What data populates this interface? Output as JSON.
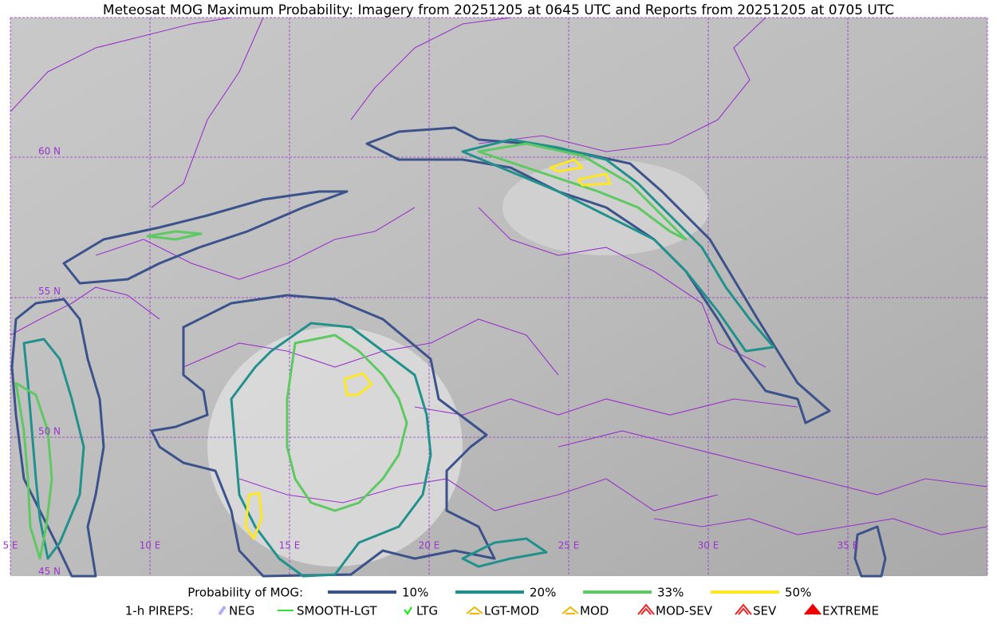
{
  "title": "Meteosat MOG Maximum Probability: Imagery from 20251205 at 0645 UTC and Reports from 20251205 at 0705 UTC",
  "map": {
    "lon_labels": [
      "5 E",
      "10 E",
      "15 E",
      "20 E",
      "25 E",
      "30 E",
      "35 E"
    ],
    "lat_labels": [
      "60 N",
      "55 N",
      "50 N",
      "45 N"
    ]
  },
  "legend": {
    "probability_title": "Probability of MOG:",
    "probability_items": [
      {
        "label": "10%",
        "color": "#3b528b"
      },
      {
        "label": "20%",
        "color": "#21918c"
      },
      {
        "label": "33%",
        "color": "#5ec962"
      },
      {
        "label": "50%",
        "color": "#fde725"
      }
    ],
    "pireps_title": "1-h PIREPS:",
    "pireps_items": [
      {
        "label": "NEG",
        "color": "#b0b0f0"
      },
      {
        "label": "SMOOTH-LGT",
        "color": "#33dd33"
      },
      {
        "label": "LTG",
        "color": "#00ee00"
      },
      {
        "label": "LGT-MOD",
        "color": "#f5b400"
      },
      {
        "label": "MOD",
        "color": "#f5b400"
      },
      {
        "label": "MOD-SEV",
        "color": "#ee2222"
      },
      {
        "label": "SEV",
        "color": "#ee2222"
      },
      {
        "label": "EXTREME",
        "color": "#ee0000"
      }
    ]
  }
}
